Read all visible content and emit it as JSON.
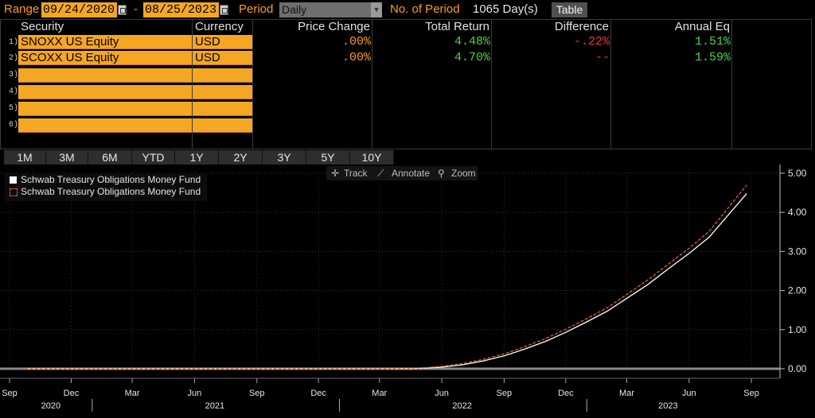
{
  "topbar": {
    "range_label": "Range",
    "start_date": "09/24/2020",
    "dash": "-",
    "end_date": "08/25/2023",
    "period_label": "Period",
    "period_value": "Daily",
    "num_period_label": "No. of Period",
    "num_period_value": "1065 Day(s)",
    "table_button": "Table"
  },
  "table": {
    "headers": [
      "Security",
      "Currency",
      "Price Change",
      "Total Return",
      "Difference",
      "Annual Eq"
    ],
    "rows": [
      {
        "num": "1)",
        "security": "SNOXX US Equity",
        "currency": "USD",
        "price_change": ".00%",
        "total_return": "4.48%",
        "difference": "-.22%",
        "annual_eq": "1.51%"
      },
      {
        "num": "2)",
        "security": "SCOXX US Equity",
        "currency": "USD",
        "price_change": ".00%",
        "total_return": "4.70%",
        "difference": "--",
        "annual_eq": "1.59%"
      },
      {
        "num": "3)",
        "security": "",
        "currency": ""
      },
      {
        "num": "4)",
        "security": "",
        "currency": ""
      },
      {
        "num": "5)",
        "security": "",
        "currency": ""
      },
      {
        "num": "6)",
        "security": "",
        "currency": ""
      }
    ]
  },
  "period_buttons": [
    "1M",
    "3M",
    "6M",
    "YTD",
    "1Y",
    "2Y",
    "3Y",
    "5Y",
    "10Y"
  ],
  "chart_toolbar": {
    "track": "Track",
    "annotate": "Annotate",
    "zoom": "Zoom"
  },
  "legend": [
    {
      "name": "Schwab Treasury Obligations Money Fund",
      "color": "#ffffff",
      "style": "solid"
    },
    {
      "name": "Schwab Treasury Obligations Money Fund",
      "color": "#e0621c",
      "style": "dashed"
    }
  ],
  "chart_data": {
    "type": "line",
    "y_ticks": [
      "5.00",
      "4.00",
      "3.00",
      "2.00",
      "1.00",
      "0.00"
    ],
    "ylim": [
      0,
      5
    ],
    "x_month_ticks": [
      "Sep",
      "Dec",
      "Mar",
      "Jun",
      "Sep",
      "Dec",
      "Mar",
      "Jun",
      "Sep",
      "Dec",
      "Mar",
      "Jun",
      "Sep"
    ],
    "x_year_labels": [
      "2020",
      "2021",
      "2022",
      "2023"
    ],
    "series": [
      {
        "name": "Schwab Treasury Obligations Money Fund",
        "color": "#ffffff",
        "x": [
          "2020-09-24",
          "2021-03-01",
          "2021-09-01",
          "2022-03-01",
          "2022-05-01",
          "2022-06-01",
          "2022-07-01",
          "2022-08-01",
          "2022-09-01",
          "2022-10-01",
          "2022-11-01",
          "2022-12-01",
          "2023-01-01",
          "2023-02-01",
          "2023-03-01",
          "2023-04-01",
          "2023-05-01",
          "2023-06-01",
          "2023-07-01",
          "2023-08-25"
        ],
        "y": [
          0,
          0,
          0,
          0,
          0.01,
          0.04,
          0.1,
          0.2,
          0.33,
          0.5,
          0.7,
          0.93,
          1.2,
          1.48,
          1.8,
          2.15,
          2.55,
          2.95,
          3.37,
          4.48
        ]
      },
      {
        "name": "Schwab Treasury Obligations Money Fund",
        "color": "#e0621c",
        "x": [
          "2020-09-24",
          "2021-03-01",
          "2021-09-01",
          "2022-03-01",
          "2022-05-01",
          "2022-06-01",
          "2022-07-01",
          "2022-08-01",
          "2022-09-01",
          "2022-10-01",
          "2022-11-01",
          "2022-12-01",
          "2023-01-01",
          "2023-02-01",
          "2023-03-01",
          "2023-04-01",
          "2023-05-01",
          "2023-06-01",
          "2023-07-01",
          "2023-08-25"
        ],
        "y": [
          0,
          0,
          0,
          0,
          0.02,
          0.06,
          0.13,
          0.24,
          0.38,
          0.56,
          0.77,
          1.01,
          1.28,
          1.57,
          1.9,
          2.27,
          2.67,
          3.08,
          3.52,
          4.7
        ]
      }
    ]
  }
}
